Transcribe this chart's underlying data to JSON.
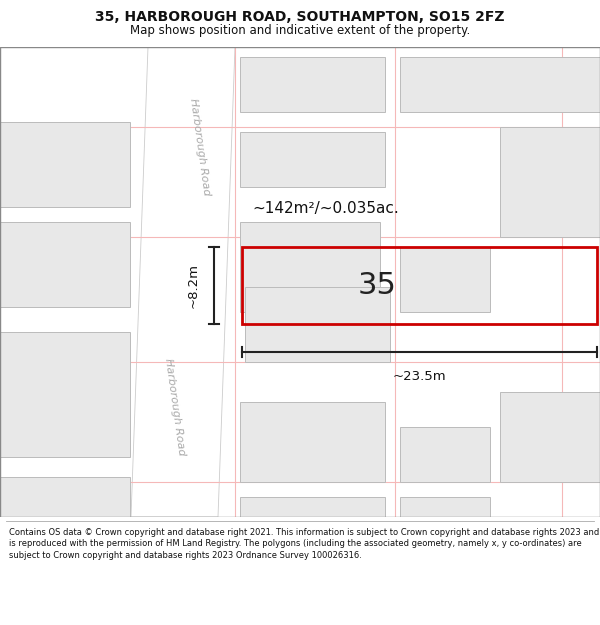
{
  "title": "35, HARBOROUGH ROAD, SOUTHAMPTON, SO15 2FZ",
  "subtitle": "Map shows position and indicative extent of the property.",
  "footer": "Contains OS data © Crown copyright and database right 2021. This information is subject to Crown copyright and database rights 2023 and is reproduced with the permission of HM Land Registry. The polygons (including the associated geometry, namely x, y co-ordinates) are subject to Crown copyright and database rights 2023 Ordnance Survey 100026316.",
  "map_bg": "#f5f5f5",
  "road_color": "#ffffff",
  "grid_color": "#f5b8b8",
  "building_fill": "#e8e8e8",
  "building_stroke": "#bbbbbb",
  "highlight_stroke": "#cc0000",
  "dim_color": "#222222",
  "area_text": "~142m²/~0.035ac.",
  "number_text": "35",
  "width_text": "~23.5m",
  "height_text": "~8.2m",
  "road_label": "Harborough Road",
  "figsize": [
    6.0,
    6.25
  ],
  "dpi": 100
}
